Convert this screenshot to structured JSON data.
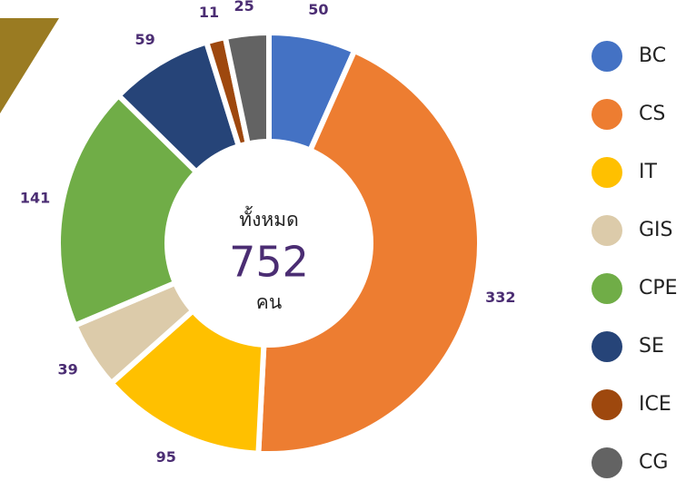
{
  "chart_data": {
    "type": "donut",
    "categories": [
      "BC",
      "CS",
      "IT",
      "GIS",
      "CPE",
      "SE",
      "ICE",
      "CG"
    ],
    "values": [
      50,
      332,
      95,
      39,
      141,
      59,
      11,
      25
    ],
    "colors": [
      "#4472c4",
      "#ed7d31",
      "#ffc000",
      "#dccbaa",
      "#70ad47",
      "#264478",
      "#9e480e",
      "#636363"
    ],
    "center": {
      "top": "ทั้งหมด",
      "total": 752,
      "bottom": "คน"
    },
    "legend": "right"
  }
}
